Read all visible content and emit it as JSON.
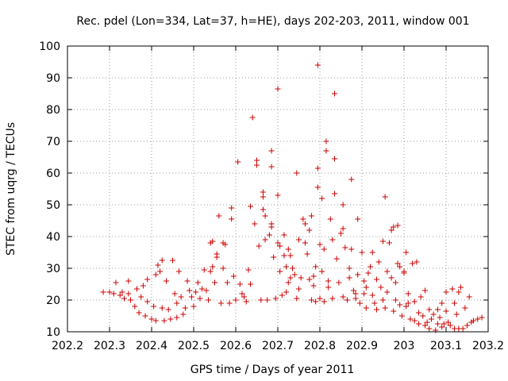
{
  "chart_data": {
    "type": "scatter",
    "title": "Rec. pdel (Lon=334, Lat=37, h=HE), days 202-203, 2011, window 001",
    "xlabel": "GPS time / Days of year 2011",
    "ylabel": "STEC from uqrg / TECUs",
    "xlim": [
      202.2,
      203.2
    ],
    "ylim": [
      10,
      100
    ],
    "x_ticks": [
      "202.2",
      "202.3",
      "202.4",
      "202.5",
      "202.6",
      "202.7",
      "202.8",
      "202.9",
      "203",
      "203.1",
      "203.2"
    ],
    "y_ticks": [
      "10",
      "20",
      "30",
      "40",
      "50",
      "60",
      "70",
      "80",
      "90",
      "100"
    ],
    "grid": true,
    "marker": "+",
    "colors": {
      "points": "#cc0000",
      "grid": "#999999",
      "axes": "#000000"
    },
    "series": [
      {
        "points": [
          [
            202.285,
            22.5
          ],
          [
            202.3,
            22.5
          ],
          [
            202.31,
            22
          ],
          [
            202.315,
            25.5
          ],
          [
            202.325,
            21.5
          ],
          [
            202.33,
            22.5
          ],
          [
            202.335,
            20.5
          ],
          [
            202.345,
            26
          ],
          [
            202.345,
            22
          ],
          [
            202.35,
            20
          ],
          [
            202.36,
            18
          ],
          [
            202.365,
            23.5
          ],
          [
            202.37,
            16
          ],
          [
            202.375,
            21
          ],
          [
            202.38,
            24.5
          ],
          [
            202.385,
            15
          ],
          [
            202.39,
            19.5
          ],
          [
            202.39,
            26.5
          ],
          [
            202.4,
            14
          ],
          [
            202.405,
            18
          ],
          [
            202.41,
            28
          ],
          [
            202.415,
            31
          ],
          [
            202.41,
            13.5
          ],
          [
            202.42,
            29
          ],
          [
            202.425,
            17.5
          ],
          [
            202.425,
            32.5
          ],
          [
            202.43,
            13.5
          ],
          [
            202.435,
            26
          ],
          [
            202.44,
            17
          ],
          [
            202.445,
            14
          ],
          [
            202.45,
            32.5
          ],
          [
            202.455,
            22
          ],
          [
            202.46,
            19
          ],
          [
            202.46,
            14.5
          ],
          [
            202.465,
            29
          ],
          [
            202.47,
            21
          ],
          [
            202.475,
            15.5
          ],
          [
            202.48,
            17.5
          ],
          [
            202.485,
            26
          ],
          [
            202.49,
            23
          ],
          [
            202.495,
            21
          ],
          [
            202.5,
            18
          ],
          [
            202.505,
            22.5
          ],
          [
            202.51,
            25.5
          ],
          [
            202.515,
            20.5
          ],
          [
            202.52,
            23.5
          ],
          [
            202.525,
            29.5
          ],
          [
            202.53,
            23
          ],
          [
            202.535,
            20
          ],
          [
            202.54,
            38
          ],
          [
            202.54,
            29
          ],
          [
            202.545,
            30.5
          ],
          [
            202.545,
            38.5
          ],
          [
            202.55,
            25.5
          ],
          [
            202.555,
            33.5
          ],
          [
            202.555,
            34.5
          ],
          [
            202.56,
            46.5
          ],
          [
            202.565,
            19
          ],
          [
            202.57,
            38
          ],
          [
            202.57,
            30
          ],
          [
            202.575,
            37.5
          ],
          [
            202.58,
            25.5
          ],
          [
            202.585,
            19
          ],
          [
            202.59,
            45.5
          ],
          [
            202.59,
            49
          ],
          [
            202.595,
            27.5
          ],
          [
            202.6,
            20
          ],
          [
            202.605,
            63.5
          ],
          [
            202.61,
            25
          ],
          [
            202.615,
            22
          ],
          [
            202.62,
            21
          ],
          [
            202.625,
            19.5
          ],
          [
            202.63,
            29.5
          ],
          [
            202.635,
            25
          ],
          [
            202.635,
            49.5
          ],
          [
            202.64,
            77.5
          ],
          [
            202.645,
            44
          ],
          [
            202.65,
            62.5
          ],
          [
            202.65,
            64
          ],
          [
            202.655,
            37
          ],
          [
            202.66,
            20
          ],
          [
            202.665,
            48.5
          ],
          [
            202.665,
            52.5
          ],
          [
            202.665,
            54
          ],
          [
            202.67,
            39
          ],
          [
            202.67,
            46.5
          ],
          [
            202.675,
            20
          ],
          [
            202.68,
            40.5
          ],
          [
            202.685,
            43
          ],
          [
            202.685,
            44
          ],
          [
            202.685,
            62
          ],
          [
            202.685,
            67
          ],
          [
            202.69,
            33.5
          ],
          [
            202.695,
            20.5
          ],
          [
            202.7,
            38
          ],
          [
            202.7,
            53
          ],
          [
            202.7,
            86.5
          ],
          [
            202.705,
            37
          ],
          [
            202.705,
            29
          ],
          [
            202.71,
            21.5
          ],
          [
            202.715,
            34
          ],
          [
            202.715,
            40.5
          ],
          [
            202.72,
            22.5
          ],
          [
            202.72,
            30.5
          ],
          [
            202.725,
            25.5
          ],
          [
            202.725,
            36
          ],
          [
            202.73,
            27
          ],
          [
            202.73,
            34
          ],
          [
            202.735,
            30
          ],
          [
            202.74,
            28
          ],
          [
            202.745,
            60
          ],
          [
            202.745,
            20.5
          ],
          [
            202.75,
            23.5
          ],
          [
            202.75,
            39
          ],
          [
            202.755,
            27
          ],
          [
            202.76,
            45.5
          ],
          [
            202.765,
            44
          ],
          [
            202.765,
            38
          ],
          [
            202.77,
            34.5
          ],
          [
            202.775,
            42
          ],
          [
            202.775,
            26.5
          ],
          [
            202.78,
            46.5
          ],
          [
            202.78,
            20
          ],
          [
            202.785,
            24.5
          ],
          [
            202.785,
            27.5
          ],
          [
            202.79,
            30.5
          ],
          [
            202.79,
            19.5
          ],
          [
            202.795,
            55.5
          ],
          [
            202.795,
            61.5
          ],
          [
            202.795,
            94
          ],
          [
            202.8,
            20.5
          ],
          [
            202.8,
            37.5
          ],
          [
            202.805,
            29
          ],
          [
            202.805,
            52
          ],
          [
            202.81,
            19.5
          ],
          [
            202.81,
            36
          ],
          [
            202.815,
            67
          ],
          [
            202.815,
            70
          ],
          [
            202.82,
            24
          ],
          [
            202.82,
            26
          ],
          [
            202.825,
            45.5
          ],
          [
            202.83,
            39
          ],
          [
            202.83,
            20.5
          ],
          [
            202.835,
            53.5
          ],
          [
            202.835,
            64.5
          ],
          [
            202.835,
            85
          ],
          [
            202.84,
            33
          ],
          [
            202.845,
            25.5
          ],
          [
            202.85,
            41
          ],
          [
            202.855,
            42.5
          ],
          [
            202.855,
            50
          ],
          [
            202.855,
            21
          ],
          [
            202.86,
            36.5
          ],
          [
            202.865,
            20
          ],
          [
            202.87,
            27
          ],
          [
            202.87,
            30
          ],
          [
            202.875,
            36
          ],
          [
            202.875,
            58
          ],
          [
            202.88,
            23
          ],
          [
            202.885,
            22
          ],
          [
            202.885,
            20.5
          ],
          [
            202.89,
            28
          ],
          [
            202.89,
            45.5
          ],
          [
            202.895,
            19
          ],
          [
            202.9,
            35
          ],
          [
            202.905,
            26
          ],
          [
            202.905,
            22
          ],
          [
            202.91,
            24
          ],
          [
            202.91,
            17.5
          ],
          [
            202.915,
            28.5
          ],
          [
            202.92,
            30.5
          ],
          [
            202.925,
            35
          ],
          [
            202.925,
            21.5
          ],
          [
            202.93,
            19
          ],
          [
            202.935,
            17
          ],
          [
            202.935,
            26.5
          ],
          [
            202.94,
            32
          ],
          [
            202.945,
            24
          ],
          [
            202.95,
            20
          ],
          [
            202.95,
            38.5
          ],
          [
            202.955,
            17.5
          ],
          [
            202.955,
            52.5
          ],
          [
            202.96,
            29
          ],
          [
            202.96,
            22.5
          ],
          [
            202.965,
            38
          ],
          [
            202.97,
            27
          ],
          [
            202.97,
            42
          ],
          [
            202.975,
            16.5
          ],
          [
            202.975,
            43
          ],
          [
            202.98,
            25.5
          ],
          [
            202.98,
            20
          ],
          [
            202.985,
            31.5
          ],
          [
            202.985,
            43.5
          ],
          [
            202.99,
            18.5
          ],
          [
            202.99,
            30.5
          ],
          [
            202.995,
            15
          ],
          [
            203.0,
            29
          ],
          [
            203.0,
            28.5
          ],
          [
            203.005,
            18
          ],
          [
            203.005,
            35
          ],
          [
            203.01,
            22
          ],
          [
            203.01,
            19
          ],
          [
            203.015,
            14
          ],
          [
            203.02,
            31.5
          ],
          [
            203.025,
            19.5
          ],
          [
            203.025,
            13.5
          ],
          [
            203.03,
            32
          ],
          [
            203.035,
            16
          ],
          [
            203.035,
            12.5
          ],
          [
            203.04,
            21
          ],
          [
            203.045,
            15
          ],
          [
            203.05,
            23
          ],
          [
            203.05,
            12
          ],
          [
            203.055,
            13
          ],
          [
            203.06,
            17
          ],
          [
            203.06,
            11
          ],
          [
            203.065,
            14
          ],
          [
            203.07,
            15.5
          ],
          [
            203.075,
            10.5
          ],
          [
            203.08,
            17
          ],
          [
            203.08,
            12.5
          ],
          [
            203.085,
            14.5
          ],
          [
            203.09,
            19
          ],
          [
            203.09,
            11.5
          ],
          [
            203.095,
            12.5
          ],
          [
            203.1,
            16.5
          ],
          [
            203.1,
            22.5
          ],
          [
            203.105,
            13
          ],
          [
            203.11,
            12
          ],
          [
            203.115,
            23.5
          ],
          [
            203.12,
            19
          ],
          [
            203.12,
            11
          ],
          [
            203.125,
            15.5
          ],
          [
            203.13,
            22.5
          ],
          [
            203.13,
            11
          ],
          [
            203.135,
            24
          ],
          [
            203.14,
            11
          ],
          [
            203.145,
            17.5
          ],
          [
            203.15,
            12
          ],
          [
            203.155,
            21
          ],
          [
            203.16,
            13
          ],
          [
            203.165,
            13.5
          ],
          [
            203.175,
            14
          ],
          [
            203.185,
            14.5
          ]
        ]
      }
    ]
  }
}
